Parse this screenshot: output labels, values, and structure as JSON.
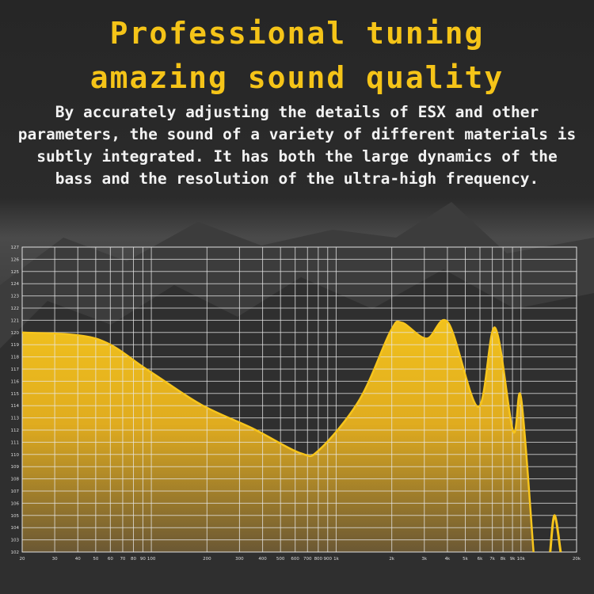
{
  "header": {
    "title_line1": "Professional tuning",
    "title_line2": "amazing sound quality",
    "description": "By accurately adjusting the details of ESX and other parameters, the sound of a variety of different materials is subtly integrated. It has both the large dynamics of the bass and the resolution of the ultra-high frequency."
  },
  "colors": {
    "title": "#f5c418",
    "curve": "#f7c51c",
    "text": "#f2f2f2",
    "grid": "#e8e8e8"
  },
  "chart_data": {
    "type": "area",
    "title": "",
    "xlabel": "",
    "ylabel": "",
    "x_scale": "log",
    "xlim": [
      20,
      20000
    ],
    "ylim": [
      102,
      127
    ],
    "grid": true,
    "x_ticks": [
      {
        "v": 20,
        "label": "20"
      },
      {
        "v": 30,
        "label": "30"
      },
      {
        "v": 40,
        "label": "40"
      },
      {
        "v": 50,
        "label": "50"
      },
      {
        "v": 60,
        "label": "60"
      },
      {
        "v": 70,
        "label": "70"
      },
      {
        "v": 80,
        "label": "80"
      },
      {
        "v": 90,
        "label": "90"
      },
      {
        "v": 100,
        "label": "100"
      },
      {
        "v": 200,
        "label": "200"
      },
      {
        "v": 300,
        "label": "300"
      },
      {
        "v": 400,
        "label": "400"
      },
      {
        "v": 500,
        "label": "500"
      },
      {
        "v": 600,
        "label": "600"
      },
      {
        "v": 700,
        "label": "700"
      },
      {
        "v": 800,
        "label": "800"
      },
      {
        "v": 900,
        "label": "900"
      },
      {
        "v": 1000,
        "label": "1k"
      },
      {
        "v": 2000,
        "label": "2k"
      },
      {
        "v": 3000,
        "label": "3k"
      },
      {
        "v": 4000,
        "label": "4k"
      },
      {
        "v": 5000,
        "label": "5k"
      },
      {
        "v": 6000,
        "label": "6k"
      },
      {
        "v": 7000,
        "label": "7k"
      },
      {
        "v": 8000,
        "label": "8k"
      },
      {
        "v": 9000,
        "label": "9k"
      },
      {
        "v": 10000,
        "label": "10k"
      },
      {
        "v": 20000,
        "label": "20k"
      }
    ],
    "y_ticks": [
      102,
      103,
      104,
      105,
      106,
      107,
      108,
      109,
      110,
      111,
      112,
      113,
      114,
      115,
      116,
      117,
      118,
      119,
      120,
      121,
      122,
      123,
      124,
      125,
      126,
      127
    ],
    "series": [
      {
        "points": [
          [
            20,
            120.0
          ],
          [
            50,
            119.5
          ],
          [
            96,
            116.9
          ],
          [
            185,
            114.1
          ],
          [
            357,
            112.1
          ],
          [
            643,
            110.1
          ],
          [
            813,
            110.4
          ],
          [
            1340,
            114.5
          ],
          [
            1970,
            120.1
          ],
          [
            2270,
            120.8
          ],
          [
            3090,
            119.5
          ],
          [
            4040,
            120.8
          ],
          [
            5870,
            113.9
          ],
          [
            7230,
            120.4
          ],
          [
            9070,
            111.9
          ],
          [
            10000,
            114.7
          ],
          [
            11700,
            102
          ]
        ]
      },
      {
        "points": [
          [
            14400,
            102
          ],
          [
            15200,
            105.0
          ],
          [
            16400,
            102
          ]
        ]
      }
    ]
  }
}
